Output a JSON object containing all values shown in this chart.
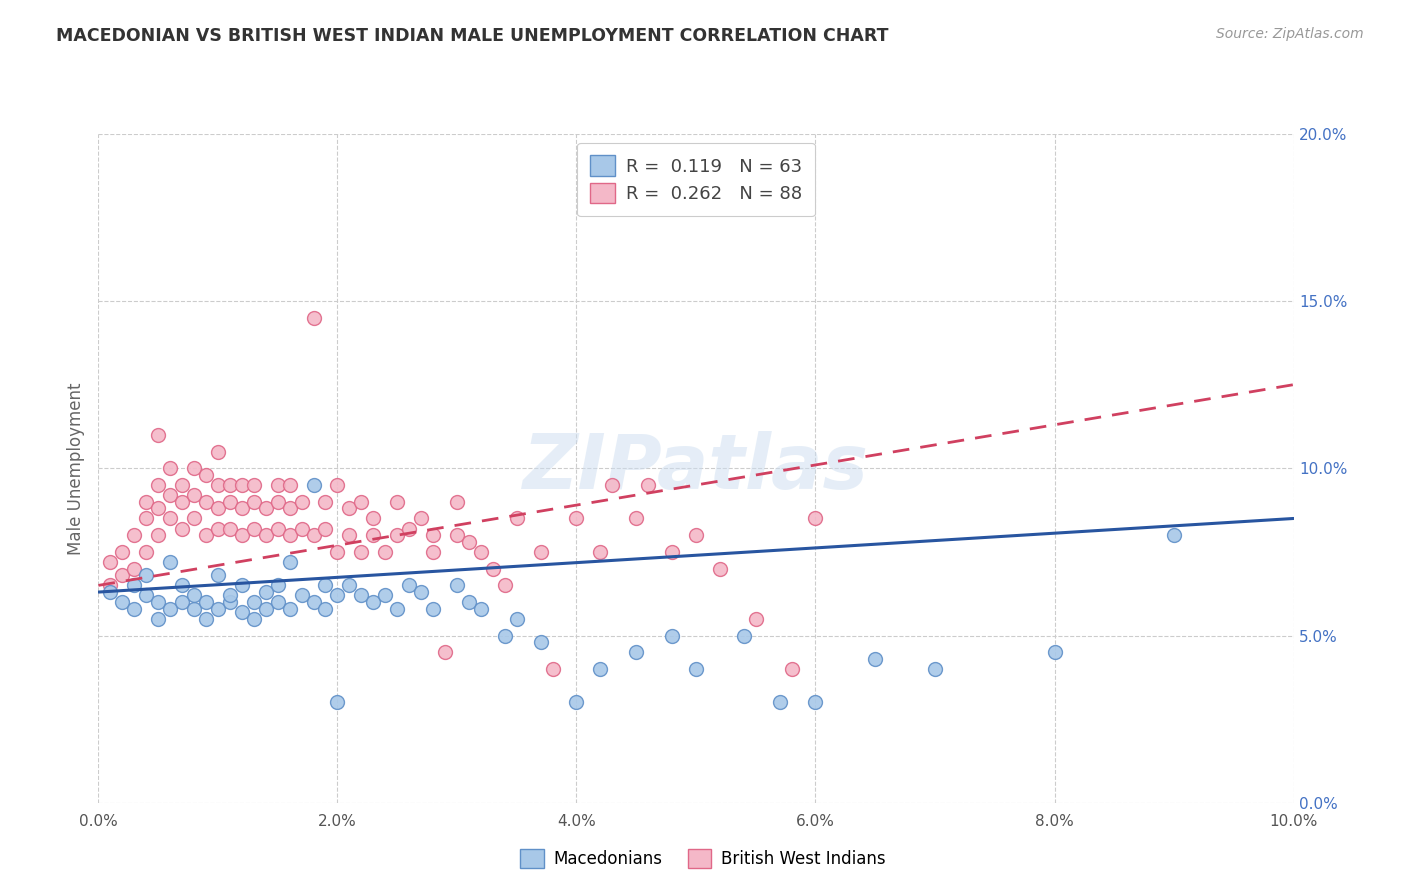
{
  "title": "MACEDONIAN VS BRITISH WEST INDIAN MALE UNEMPLOYMENT CORRELATION CHART",
  "source": "Source: ZipAtlas.com",
  "ylabel": "Male Unemployment",
  "xlim": [
    0.0,
    0.1
  ],
  "ylim": [
    0.0,
    0.2
  ],
  "xticks": [
    0.0,
    0.02,
    0.04,
    0.06,
    0.08,
    0.1
  ],
  "yticks": [
    0.0,
    0.05,
    0.1,
    0.15,
    0.2
  ],
  "xtick_labels": [
    "0.0%",
    "2.0%",
    "4.0%",
    "6.0%",
    "8.0%",
    "10.0%"
  ],
  "ytick_labels_right": [
    "0.0%",
    "5.0%",
    "10.0%",
    "15.0%",
    "20.0%"
  ],
  "macedonian_color": "#a8c8e8",
  "bwi_color": "#f4b8c8",
  "macedonian_edge_color": "#6090c8",
  "bwi_edge_color": "#e06888",
  "macedonian_line_color": "#2855a0",
  "bwi_line_color": "#d04060",
  "watermark": "ZIPatlas",
  "macedonian_r": 0.119,
  "macedonian_n": 63,
  "bwi_r": 0.262,
  "bwi_n": 88,
  "mac_x": [
    0.001,
    0.002,
    0.003,
    0.003,
    0.004,
    0.004,
    0.005,
    0.005,
    0.006,
    0.006,
    0.007,
    0.007,
    0.008,
    0.008,
    0.009,
    0.009,
    0.01,
    0.01,
    0.011,
    0.011,
    0.012,
    0.012,
    0.013,
    0.013,
    0.014,
    0.014,
    0.015,
    0.015,
    0.016,
    0.016,
    0.017,
    0.018,
    0.018,
    0.019,
    0.019,
    0.02,
    0.02,
    0.021,
    0.022,
    0.023,
    0.024,
    0.025,
    0.026,
    0.027,
    0.028,
    0.03,
    0.031,
    0.032,
    0.034,
    0.035,
    0.037,
    0.04,
    0.042,
    0.045,
    0.048,
    0.05,
    0.054,
    0.057,
    0.06,
    0.065,
    0.07,
    0.08,
    0.09
  ],
  "mac_y": [
    0.063,
    0.06,
    0.058,
    0.065,
    0.062,
    0.068,
    0.055,
    0.06,
    0.058,
    0.072,
    0.06,
    0.065,
    0.058,
    0.062,
    0.055,
    0.06,
    0.058,
    0.068,
    0.06,
    0.062,
    0.057,
    0.065,
    0.055,
    0.06,
    0.058,
    0.063,
    0.06,
    0.065,
    0.058,
    0.072,
    0.062,
    0.095,
    0.06,
    0.058,
    0.065,
    0.03,
    0.062,
    0.065,
    0.062,
    0.06,
    0.062,
    0.058,
    0.065,
    0.063,
    0.058,
    0.065,
    0.06,
    0.058,
    0.05,
    0.055,
    0.048,
    0.03,
    0.04,
    0.045,
    0.05,
    0.04,
    0.05,
    0.03,
    0.03,
    0.043,
    0.04,
    0.045,
    0.08
  ],
  "bwi_x": [
    0.001,
    0.001,
    0.002,
    0.002,
    0.003,
    0.003,
    0.004,
    0.004,
    0.004,
    0.005,
    0.005,
    0.005,
    0.005,
    0.006,
    0.006,
    0.006,
    0.007,
    0.007,
    0.007,
    0.008,
    0.008,
    0.008,
    0.009,
    0.009,
    0.009,
    0.01,
    0.01,
    0.01,
    0.01,
    0.011,
    0.011,
    0.011,
    0.012,
    0.012,
    0.012,
    0.013,
    0.013,
    0.013,
    0.014,
    0.014,
    0.015,
    0.015,
    0.015,
    0.016,
    0.016,
    0.016,
    0.017,
    0.017,
    0.018,
    0.018,
    0.019,
    0.019,
    0.02,
    0.02,
    0.021,
    0.021,
    0.022,
    0.022,
    0.023,
    0.023,
    0.024,
    0.025,
    0.025,
    0.026,
    0.027,
    0.028,
    0.028,
    0.029,
    0.03,
    0.03,
    0.031,
    0.032,
    0.033,
    0.034,
    0.035,
    0.037,
    0.038,
    0.04,
    0.042,
    0.043,
    0.045,
    0.046,
    0.048,
    0.05,
    0.052,
    0.055,
    0.058,
    0.06
  ],
  "bwi_y": [
    0.065,
    0.072,
    0.068,
    0.075,
    0.07,
    0.08,
    0.075,
    0.085,
    0.09,
    0.08,
    0.088,
    0.095,
    0.11,
    0.085,
    0.092,
    0.1,
    0.082,
    0.09,
    0.095,
    0.085,
    0.092,
    0.1,
    0.08,
    0.09,
    0.098,
    0.082,
    0.088,
    0.095,
    0.105,
    0.082,
    0.09,
    0.095,
    0.08,
    0.088,
    0.095,
    0.082,
    0.09,
    0.095,
    0.08,
    0.088,
    0.082,
    0.09,
    0.095,
    0.08,
    0.088,
    0.095,
    0.082,
    0.09,
    0.08,
    0.145,
    0.082,
    0.09,
    0.075,
    0.095,
    0.08,
    0.088,
    0.075,
    0.09,
    0.08,
    0.085,
    0.075,
    0.08,
    0.09,
    0.082,
    0.085,
    0.075,
    0.08,
    0.045,
    0.08,
    0.09,
    0.078,
    0.075,
    0.07,
    0.065,
    0.085,
    0.075,
    0.04,
    0.085,
    0.075,
    0.095,
    0.085,
    0.095,
    0.075,
    0.08,
    0.07,
    0.055,
    0.04,
    0.085
  ]
}
